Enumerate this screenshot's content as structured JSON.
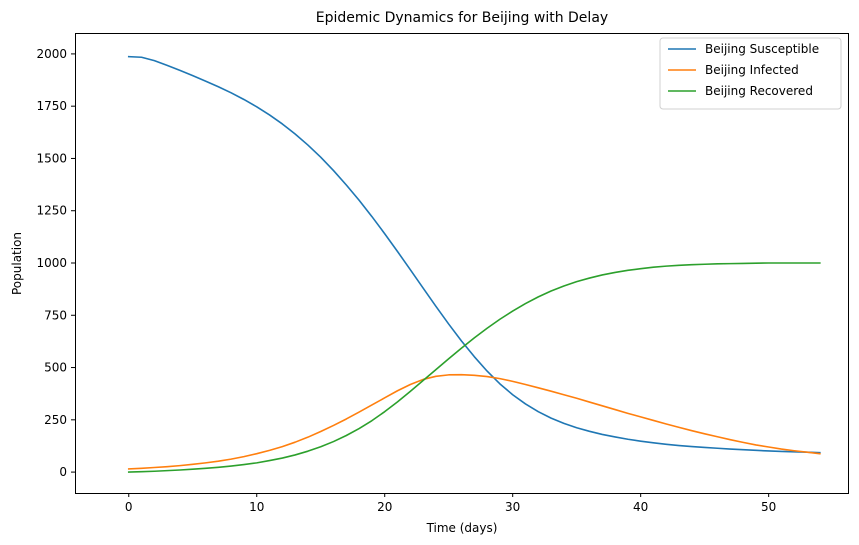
{
  "chart_data": {
    "type": "line",
    "title": "Epidemic Dynamics for Beijing with Delay",
    "xlabel": "Time (days)",
    "ylabel": "Population",
    "xlim": [
      -4.2,
      56.2
    ],
    "ylim": [
      -100,
      2100
    ],
    "xticks": [
      0,
      10,
      20,
      30,
      40,
      50
    ],
    "yticks": [
      0,
      250,
      500,
      750,
      1000,
      1250,
      1500,
      1750,
      2000
    ],
    "grid": false,
    "legend_position": "top-right",
    "x": [
      0,
      1,
      2,
      3,
      4,
      5,
      6,
      7,
      8,
      9,
      10,
      11,
      12,
      13,
      14,
      15,
      16,
      17,
      18,
      19,
      20,
      21,
      22,
      23,
      24,
      25,
      26,
      27,
      28,
      29,
      30,
      31,
      32,
      33,
      34,
      35,
      36,
      37,
      38,
      39,
      40,
      41,
      42,
      43,
      44,
      45,
      46,
      47,
      48,
      49,
      50,
      51,
      52,
      53,
      54
    ],
    "series": [
      {
        "name": "Beijing Susceptible",
        "color": "#1f77b4",
        "values": [
          1987,
          1984,
          1968,
          1945,
          1921,
          1896,
          1870,
          1843,
          1814,
          1782,
          1747,
          1708,
          1665,
          1617,
          1564,
          1506,
          1442,
          1373,
          1300,
          1222,
          1140,
          1055,
          968,
          880,
          793,
          708,
          627,
          552,
          483,
          422,
          370,
          326,
          289,
          258,
          233,
          212,
          195,
          180,
          168,
          157,
          148,
          140,
          133,
          127,
          122,
          118,
          114,
          110,
          107,
          104,
          101,
          99,
          97,
          95,
          93
        ]
      },
      {
        "name": "Beijing Infected",
        "color": "#ff7f0e",
        "values": [
          15,
          18,
          22,
          26,
          31,
          37,
          44,
          52,
          62,
          74,
          88,
          104,
          122,
          143,
          167,
          194,
          223,
          254,
          287,
          321,
          355,
          389,
          419,
          443,
          458,
          465,
          466,
          463,
          457,
          447,
          434,
          419,
          403,
          387,
          370,
          353,
          335,
          317,
          299,
          281,
          264,
          247,
          230,
          214,
          198,
          183,
          169,
          155,
          142,
          130,
          120,
          110,
          102,
          95,
          88
        ]
      },
      {
        "name": "Beijing Recovered",
        "color": "#2ca02c",
        "values": [
          0,
          2,
          4,
          7,
          10,
          14,
          18,
          23,
          29,
          36,
          44,
          55,
          67,
          82,
          100,
          121,
          146,
          175,
          208,
          246,
          289,
          336,
          386,
          438,
          490,
          542,
          593,
          642,
          688,
          731,
          770,
          806,
          838,
          866,
          890,
          911,
          928,
          943,
          955,
          965,
          973,
          980,
          985,
          989,
          992,
          994,
          996,
          997,
          998,
          999,
          1000,
          1000,
          1000,
          1000,
          1000
        ]
      }
    ]
  }
}
